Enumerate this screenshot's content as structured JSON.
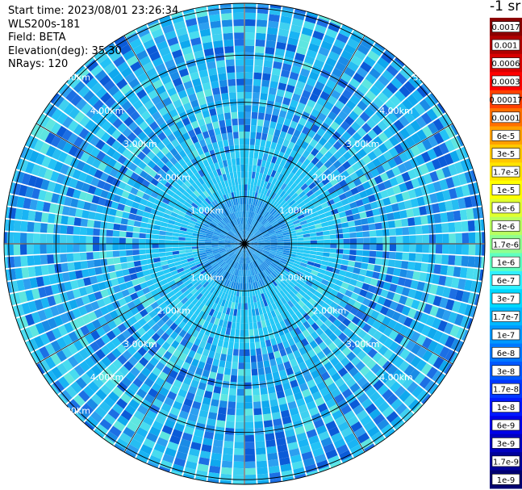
{
  "info": {
    "start_time": "Start time: 2023/08/01 23:26:34",
    "instrument": "WLS200s-181",
    "field": "Field: BETA",
    "elevation": "Elevation(deg): 35.30",
    "nrays": "NRays: 120"
  },
  "colorbar": {
    "unit": "-1 sr",
    "labels": [
      "0.0017",
      "0.001",
      "0.0006",
      "0.0003",
      "0.00017",
      "0.0001",
      "6e-5",
      "3e-5",
      "1.7e-5",
      "1e-5",
      "6e-6",
      "3e-6",
      "1.7e-6",
      "1e-6",
      "6e-7",
      "3e-7",
      "1.7e-7",
      "1e-7",
      "6e-8",
      "3e-8",
      "1.7e-8",
      "1e-8",
      "6e-9",
      "3e-9",
      "1.7e-9",
      "1e-9"
    ],
    "colors": [
      "#8b0000",
      "#b00000",
      "#d80000",
      "#ff0000",
      "#ff4000",
      "#ff7000",
      "#ffa000",
      "#ffc800",
      "#ffe400",
      "#ffff00",
      "#e0ff30",
      "#b8ff60",
      "#90ff90",
      "#60ffc0",
      "#30f0ff",
      "#00d8ff",
      "#00b8ff",
      "#0098ff",
      "#0078ff",
      "#0058ff",
      "#0038ff",
      "#0018ff",
      "#0000e8",
      "#0000c0",
      "#000098",
      "#000070"
    ]
  },
  "chart_data": {
    "type": "heatmap",
    "projection": "polar",
    "nrays": 120,
    "range_rings_km": [
      1,
      2,
      3,
      4,
      5
    ],
    "range_labels": [
      "1.00km",
      "2.00km",
      "3.00km",
      "4.00km",
      "5.00km"
    ],
    "max_range_km": 5.1,
    "spokes_deg": 30,
    "typical_value_range": [
      "1e-8",
      "1e-7"
    ]
  }
}
